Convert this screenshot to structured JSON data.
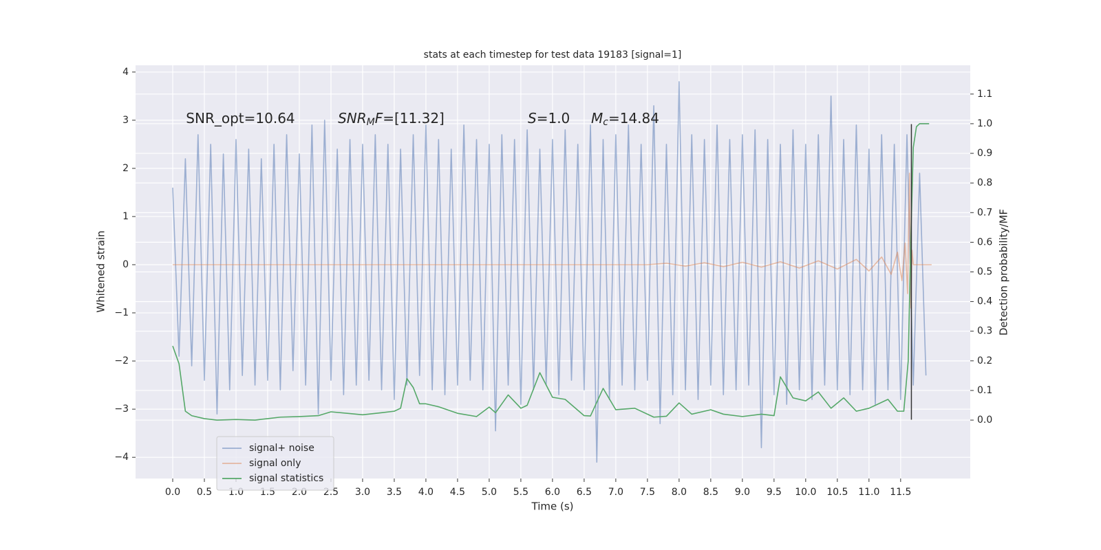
{
  "chart_data": {
    "type": "line",
    "title": "stats at each timestep for test data 19183 [signal=1]",
    "xlabel": "Time (s)",
    "ylabel": "Whitened strain",
    "y2label": "Detection probability/MF",
    "xlim": [
      -0.587,
      12.6
    ],
    "ylim": [
      -4.44,
      4.14
    ],
    "y2lim": [
      -0.197,
      1.197
    ],
    "xticks": [
      {
        "value": 0,
        "label": "0.0"
      },
      {
        "value": 0.5,
        "label": "0.5"
      },
      {
        "value": 1,
        "label": "1.0"
      },
      {
        "value": 1.5,
        "label": "1.5"
      },
      {
        "value": 2,
        "label": "2.0"
      },
      {
        "value": 2.5,
        "label": "2.5"
      },
      {
        "value": 3,
        "label": "3.0"
      },
      {
        "value": 3.5,
        "label": "3.5"
      },
      {
        "value": 4,
        "label": "4.0"
      },
      {
        "value": 4.5,
        "label": "4.5"
      },
      {
        "value": 5,
        "label": "5.0"
      },
      {
        "value": 5.5,
        "label": "5.5"
      },
      {
        "value": 6,
        "label": "6.0"
      },
      {
        "value": 6.5,
        "label": "6.5"
      },
      {
        "value": 7,
        "label": "7.0"
      },
      {
        "value": 7.5,
        "label": "7.5"
      },
      {
        "value": 8,
        "label": "8.0"
      },
      {
        "value": 8.5,
        "label": "8.5"
      },
      {
        "value": 9,
        "label": "9.0"
      },
      {
        "value": 9.5,
        "label": "9.5"
      },
      {
        "value": 10,
        "label": "10.0"
      },
      {
        "value": 10.5,
        "label": "10.5"
      },
      {
        "value": 11,
        "label": "11.0"
      },
      {
        "value": 11.5,
        "label": "11.5"
      }
    ],
    "yticks": [
      {
        "value": -4,
        "label": "−4"
      },
      {
        "value": -3,
        "label": "−3"
      },
      {
        "value": -2,
        "label": "−2"
      },
      {
        "value": -1,
        "label": "−1"
      },
      0,
      1,
      2,
      3,
      4
    ],
    "y2ticks": [
      {
        "value": 0,
        "label": "0.0"
      },
      {
        "value": 0.1,
        "label": "0.1"
      },
      {
        "value": 0.2,
        "label": "0.2"
      },
      {
        "value": 0.3,
        "label": "0.3"
      },
      {
        "value": 0.4,
        "label": "0.4"
      },
      {
        "value": 0.5,
        "label": "0.5"
      },
      {
        "value": 0.6,
        "label": "0.6"
      },
      {
        "value": 0.7,
        "label": "0.7"
      },
      {
        "value": 0.8,
        "label": "0.8"
      },
      {
        "value": 0.9,
        "label": "0.9"
      },
      {
        "value": 1,
        "label": "1.0"
      },
      {
        "value": 1.1,
        "label": "1.1"
      }
    ],
    "grid": true,
    "legend": "lower left",
    "series": [
      {
        "name": "signal+ noise",
        "color": "#4c72b0",
        "alpha": 0.5,
        "x": [
          0.0,
          0.1,
          0.2,
          0.3,
          0.4,
          0.5,
          0.6,
          0.7,
          0.8,
          0.9,
          1.0,
          1.1,
          1.2,
          1.3,
          1.4,
          1.5,
          1.6,
          1.7,
          1.8,
          1.9,
          2.0,
          2.1,
          2.2,
          2.3,
          2.4,
          2.5,
          2.6,
          2.7,
          2.8,
          2.9,
          3.0,
          3.1,
          3.2,
          3.3,
          3.4,
          3.5,
          3.6,
          3.7,
          3.8,
          3.9,
          4.0,
          4.1,
          4.2,
          4.3,
          4.4,
          4.5,
          4.6,
          4.7,
          4.8,
          4.9,
          5.0,
          5.1,
          5.2,
          5.3,
          5.4,
          5.5,
          5.6,
          5.7,
          5.8,
          5.9,
          6.0,
          6.1,
          6.2,
          6.3,
          6.4,
          6.5,
          6.6,
          6.7,
          6.8,
          6.9,
          7.0,
          7.1,
          7.2,
          7.3,
          7.4,
          7.5,
          7.6,
          7.7,
          7.8,
          7.9,
          8.0,
          8.1,
          8.2,
          8.3,
          8.4,
          8.5,
          8.6,
          8.7,
          8.8,
          8.9,
          9.0,
          9.1,
          9.2,
          9.3,
          9.4,
          9.5,
          9.6,
          9.7,
          9.8,
          9.9,
          10.0,
          10.1,
          10.2,
          10.3,
          10.4,
          10.5,
          10.6,
          10.7,
          10.8,
          10.9,
          11.0,
          11.1,
          11.2,
          11.3,
          11.4,
          11.5,
          11.6,
          11.7,
          11.8,
          11.9
        ],
        "values": [
          1.6,
          -1.9,
          2.2,
          -2.1,
          2.7,
          -2.4,
          2.5,
          -3.1,
          2.3,
          -2.6,
          2.6,
          -2.3,
          2.4,
          -2.5,
          2.2,
          -2.4,
          2.5,
          -2.6,
          2.7,
          -2.2,
          2.3,
          -2.5,
          2.9,
          -3.1,
          3.0,
          -2.4,
          2.4,
          -2.7,
          2.6,
          -2.5,
          2.5,
          -2.4,
          2.7,
          -2.6,
          2.5,
          -2.8,
          2.4,
          -2.5,
          2.7,
          -2.3,
          2.9,
          -2.6,
          2.6,
          -2.7,
          2.4,
          -2.5,
          2.9,
          -2.4,
          2.6,
          -2.6,
          2.5,
          -3.45,
          2.7,
          -2.5,
          2.6,
          -2.9,
          2.8,
          -2.6,
          2.4,
          -2.5,
          2.6,
          -2.7,
          2.8,
          -2.4,
          2.5,
          -2.6,
          2.9,
          -4.1,
          2.6,
          -2.8,
          2.7,
          -2.5,
          2.9,
          -2.6,
          2.5,
          -2.4,
          3.3,
          -3.3,
          2.5,
          -2.7,
          3.8,
          -2.6,
          2.7,
          -2.8,
          2.6,
          -2.5,
          2.9,
          -2.7,
          2.6,
          -2.6,
          2.7,
          -2.5,
          2.8,
          -3.8,
          2.6,
          -2.7,
          2.5,
          -2.9,
          2.8,
          -2.6,
          2.5,
          -2.8,
          2.7,
          -2.5,
          3.5,
          -2.6,
          2.6,
          -2.7,
          2.9,
          -2.6,
          2.4,
          -2.9,
          2.7,
          -2.6,
          2.5,
          -2.8,
          2.7,
          -2.5,
          1.9,
          -2.3
        ]
      },
      {
        "name": "signal only",
        "color": "#dd8452",
        "alpha": 0.5,
        "x": [
          0.0,
          7.5,
          7.8,
          8.1,
          8.4,
          8.7,
          9.0,
          9.3,
          9.6,
          9.9,
          10.2,
          10.5,
          10.8,
          11.0,
          11.2,
          11.35,
          11.45,
          11.52,
          11.57,
          11.61,
          11.64,
          11.66,
          11.68,
          11.7,
          11.99
        ],
        "values": [
          0,
          0,
          0.03,
          -0.03,
          0.04,
          -0.04,
          0.05,
          -0.05,
          0.06,
          -0.07,
          0.08,
          -0.09,
          0.11,
          -0.13,
          0.16,
          -0.2,
          0.26,
          -0.33,
          0.45,
          -0.6,
          1.9,
          -0.9,
          0.3,
          0,
          0
        ]
      },
      {
        "name": "signal statistics",
        "color": "#55a868",
        "alpha": 1,
        "axis": "y2",
        "x": [
          0.0,
          0.1,
          0.2,
          0.3,
          0.5,
          0.7,
          1.0,
          1.3,
          1.5,
          1.7,
          2.0,
          2.3,
          2.5,
          2.8,
          3.0,
          3.3,
          3.5,
          3.6,
          3.7,
          3.8,
          3.9,
          4.0,
          4.2,
          4.5,
          4.8,
          5.0,
          5.1,
          5.3,
          5.5,
          5.6,
          5.8,
          6.0,
          6.2,
          6.5,
          6.6,
          6.8,
          7.0,
          7.3,
          7.6,
          7.8,
          8.0,
          8.2,
          8.5,
          8.7,
          9.0,
          9.3,
          9.5,
          9.6,
          9.8,
          10.0,
          10.2,
          10.4,
          10.6,
          10.8,
          11.0,
          11.3,
          11.45,
          11.55,
          11.62,
          11.66,
          11.7,
          11.75,
          11.8,
          11.95
        ],
        "values": [
          0.25,
          0.19,
          0.03,
          0.015,
          0.005,
          0.0,
          0.002,
          0.0,
          0.005,
          0.01,
          0.012,
          0.015,
          0.028,
          0.022,
          0.018,
          0.025,
          0.03,
          0.04,
          0.14,
          0.11,
          0.055,
          0.055,
          0.045,
          0.023,
          0.012,
          0.044,
          0.025,
          0.085,
          0.04,
          0.05,
          0.16,
          0.077,
          0.07,
          0.015,
          0.014,
          0.107,
          0.035,
          0.04,
          0.01,
          0.013,
          0.058,
          0.02,
          0.035,
          0.02,
          0.012,
          0.02,
          0.015,
          0.146,
          0.075,
          0.065,
          0.095,
          0.04,
          0.075,
          0.03,
          0.04,
          0.07,
          0.03,
          0.03,
          0.2,
          0.6,
          0.92,
          0.99,
          1.0,
          1.0
        ]
      }
    ],
    "vlines": [
      {
        "x": 11.67,
        "ymin": -3.22,
        "ymax": 2.92,
        "color": "#333333"
      }
    ],
    "annotations": [
      {
        "x": 0.21,
        "y": 3.03,
        "parts": [
          {
            "text": "SNR_opt=10.64"
          }
        ]
      },
      {
        "x": 2.61,
        "y": 3.03,
        "parts": [
          {
            "text": "SNR",
            "italic": true
          },
          {
            "text": "M",
            "italic": true,
            "sub": true
          },
          {
            "text": "F",
            "italic": true
          },
          {
            "text": "=[11.32]"
          }
        ]
      },
      {
        "x": 5.61,
        "y": 3.03,
        "parts": [
          {
            "text": "S",
            "italic": true
          },
          {
            "text": "=1.0"
          }
        ]
      },
      {
        "x": 6.61,
        "y": 3.03,
        "parts": [
          {
            "text": "M",
            "italic": true
          },
          {
            "text": "c",
            "italic": true,
            "sub": true
          },
          {
            "text": "=14.84"
          }
        ]
      }
    ]
  }
}
